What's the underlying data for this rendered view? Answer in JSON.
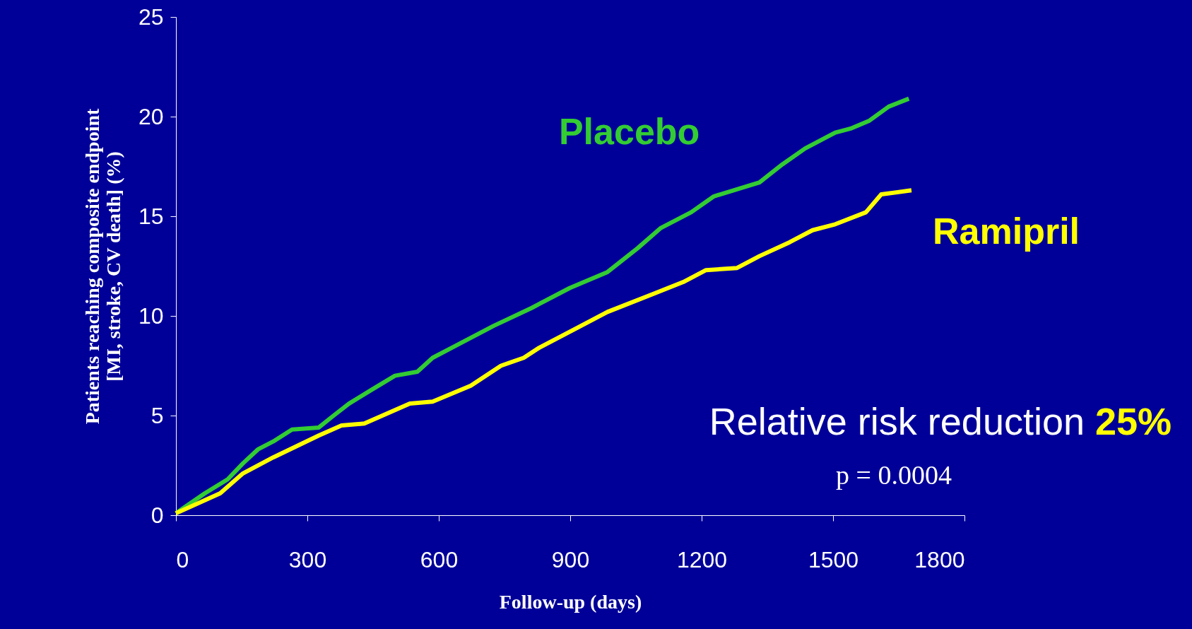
{
  "chart_data": {
    "type": "line",
    "xlabel": "Follow-up (days)",
    "ylabel": "Patients reaching composite endpoint\n[MI, stroke, CV death] (%)",
    "xlim": [
      0,
      1800
    ],
    "xticks": [
      0,
      300,
      600,
      900,
      1200,
      1500,
      1800
    ],
    "ylim": [
      0,
      25
    ],
    "yticks": [
      0,
      5,
      10,
      15,
      20,
      25
    ],
    "grid": false,
    "series": [
      {
        "name": "Placebo",
        "color": "#33cc33",
        "x": [
          0,
          66,
          118,
          153,
          187,
          222,
          265,
          326,
          360,
          395,
          447,
          500,
          551,
          586,
          638,
          725,
          812,
          899,
          985,
          1054,
          1106,
          1176,
          1228,
          1332,
          1384,
          1436,
          1488,
          1505,
          1540,
          1583,
          1627,
          1673
        ],
        "values": [
          0.1,
          1.1,
          1.8,
          2.6,
          3.3,
          3.7,
          4.3,
          4.4,
          5.0,
          5.6,
          6.3,
          7.0,
          7.2,
          7.9,
          8.5,
          9.5,
          10.4,
          11.4,
          12.2,
          13.4,
          14.4,
          15.2,
          16.0,
          16.7,
          17.6,
          18.4,
          19.0,
          19.2,
          19.4,
          19.8,
          20.5,
          20.9
        ]
      },
      {
        "name": "Ramipril",
        "color": "#ffff00",
        "x": [
          0,
          101,
          153,
          222,
          326,
          378,
          430,
          534,
          586,
          673,
          742,
          794,
          829,
          916,
          985,
          1089,
          1158,
          1210,
          1280,
          1332,
          1401,
          1453,
          1505,
          1575,
          1610,
          1679
        ],
        "values": [
          0.1,
          1.1,
          2.1,
          2.9,
          4.0,
          4.5,
          4.6,
          5.6,
          5.7,
          6.5,
          7.5,
          7.9,
          8.4,
          9.4,
          10.2,
          11.1,
          11.7,
          12.3,
          12.4,
          13.0,
          13.7,
          14.3,
          14.6,
          15.2,
          16.1,
          16.3
        ]
      }
    ],
    "annotations": [
      "Relative risk reduction",
      "25%",
      "p = 0.0004"
    ]
  }
}
